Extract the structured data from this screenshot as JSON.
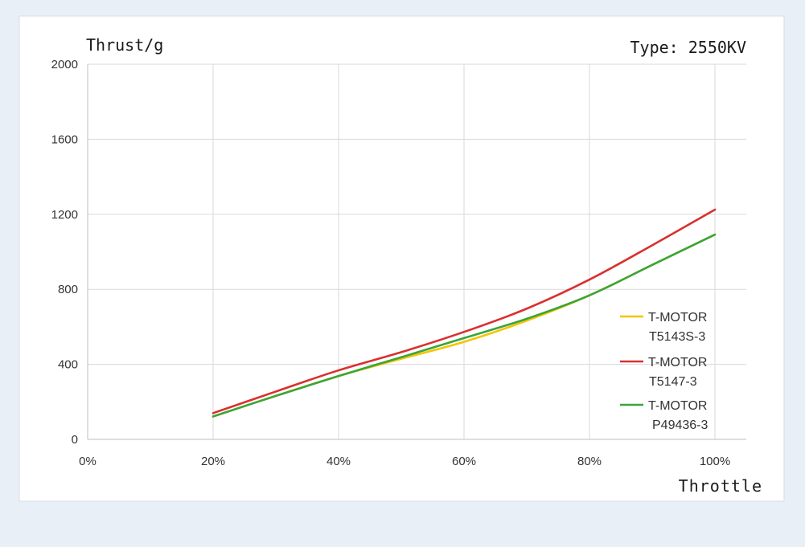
{
  "chart_data": {
    "type": "line",
    "ylabel": "Thrust/g",
    "xlabel": "Throttle",
    "title": "Type: 2550KV",
    "x_ticks": [
      "0%",
      "20%",
      "40%",
      "60%",
      "80%",
      "100%"
    ],
    "y_ticks": [
      "0",
      "400",
      "800",
      "1200",
      "1600",
      "2000"
    ],
    "xlim": [
      0,
      100
    ],
    "ylim": [
      0,
      2000
    ],
    "grid": true,
    "legend_position": "right",
    "x": [
      20,
      30,
      40,
      50,
      60,
      70,
      80,
      90,
      100
    ],
    "series": [
      {
        "name": [
          "T-MOTOR",
          "T5143S-3"
        ],
        "color": "#f5c400",
        "values": [
          122,
          232,
          338,
          430,
          520,
          633,
          768,
          930,
          1092
        ]
      },
      {
        "name": [
          "T-MOTOR",
          "T5147-3"
        ],
        "color": "#d93030",
        "values": [
          140,
          255,
          368,
          465,
          573,
          697,
          852,
          1035,
          1225
        ]
      },
      {
        "name": [
          "T-MOTOR",
          "P49436-3"
        ],
        "color": "#3aa53a",
        "values": [
          122,
          232,
          338,
          438,
          540,
          643,
          768,
          930,
          1092
        ]
      }
    ]
  }
}
